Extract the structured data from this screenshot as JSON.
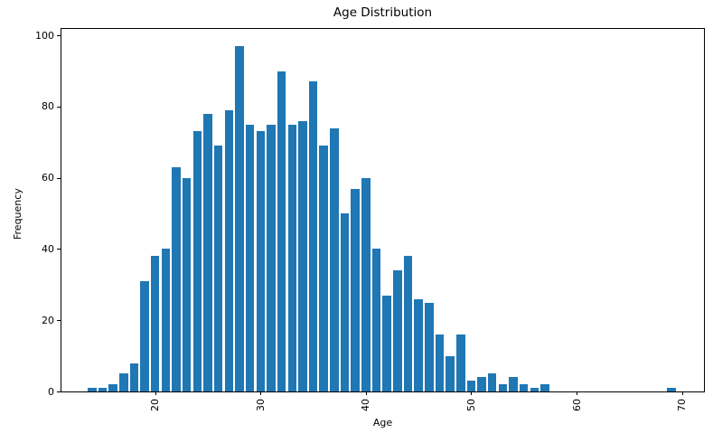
{
  "figure": {
    "background_color": "#ffffff",
    "text_color": "#000000"
  },
  "chart_data": {
    "type": "bar",
    "title": "Age Distribution",
    "xlabel": "Age",
    "ylabel": "Frequency",
    "x": [
      14,
      15,
      16,
      17,
      18,
      19,
      20,
      21,
      22,
      23,
      24,
      25,
      26,
      27,
      28,
      29,
      30,
      31,
      32,
      33,
      34,
      35,
      36,
      37,
      38,
      39,
      40,
      41,
      42,
      43,
      44,
      45,
      46,
      47,
      48,
      49,
      50,
      51,
      52,
      53,
      54,
      55,
      56,
      57,
      58,
      59,
      60,
      61,
      62,
      63,
      64,
      65,
      66,
      67,
      68,
      69
    ],
    "values": [
      1,
      1,
      2,
      5,
      8,
      31,
      38,
      40,
      63,
      60,
      73,
      78,
      69,
      79,
      97,
      75,
      73,
      75,
      90,
      75,
      76,
      87,
      69,
      74,
      50,
      57,
      60,
      40,
      27,
      34,
      38,
      26,
      25,
      16,
      10,
      16,
      3,
      4,
      5,
      2,
      4,
      2,
      1,
      2,
      0,
      0,
      0,
      0,
      0,
      0,
      0,
      0,
      0,
      0,
      0,
      1
    ],
    "x_ticks": [
      20,
      30,
      40,
      50,
      60,
      70
    ],
    "y_ticks": [
      0,
      20,
      40,
      60,
      80,
      100
    ],
    "xlim": [
      11.1,
      72.1
    ],
    "ylim": [
      0,
      101.8
    ],
    "grid": false,
    "legend": null,
    "bar_color": "#1f77b4",
    "axis_color": "#000000"
  }
}
